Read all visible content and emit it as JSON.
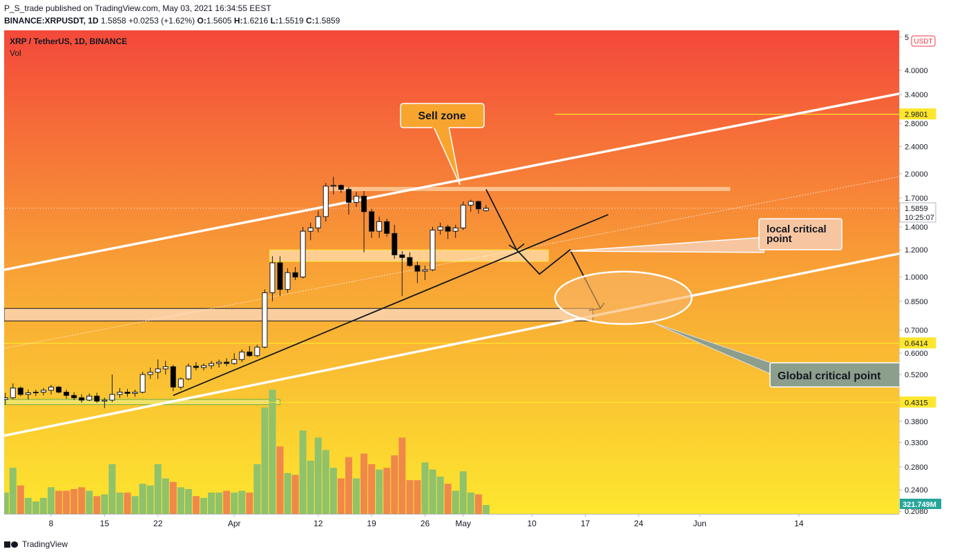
{
  "header": {
    "publisher_line": "P_S_trade published on TradingView.com, May 03, 2021 16:34:55 EEST",
    "symbol": "BINANCE:XRPUSDT, 1D",
    "last": "1.5858",
    "change": "+0.0253 (+1.62%)",
    "o_label": "O:",
    "o_value": "1.5605",
    "h_label": "H:",
    "h_value": "1.6216",
    "l_label": "L:",
    "l_value": "1.5519",
    "c_label": "C:",
    "c_value": "1.5859"
  },
  "legend": {
    "title": "XRP / TetherUS, 1D, BINANCE",
    "vol": "Vol"
  },
  "footer": {
    "brand": "TradingView"
  },
  "colors": {
    "up": "#ffffff",
    "down": "#000000",
    "vol_up": "#8fc26b",
    "vol_down": "#f0884a",
    "gradient_top": "#f4483a",
    "gradient_bottom": "#fde72e"
  },
  "chart_data": {
    "type": "candlestick",
    "scale": "log",
    "currency": "USDT",
    "y_ticks": [
      5,
      4.0,
      3.4,
      2.8,
      2.4,
      2.0,
      1.7,
      1.4,
      1.2,
      1.0,
      0.85,
      0.7,
      0.6,
      0.52,
      0.38,
      0.33,
      0.28,
      0.24,
      0.208
    ],
    "y_tick_labels": [
      "5",
      "4.0000",
      "3.4000",
      "2.8000",
      "2.4000",
      "2.0000",
      "1.7000",
      "1.4000",
      "1.2000",
      "1.0000",
      "0.8500",
      "0.7000",
      "0.6000",
      "0.5200",
      "0.3800",
      "0.3300",
      "0.2800",
      "0.2400",
      "0.2080"
    ],
    "x_labels": [
      {
        "label": "8",
        "date": "2021-03-08"
      },
      {
        "label": "15",
        "date": "2021-03-15"
      },
      {
        "label": "22",
        "date": "2021-03-22"
      },
      {
        "label": "Apr",
        "date": "2021-04-01"
      },
      {
        "label": "12",
        "date": "2021-04-12"
      },
      {
        "label": "19",
        "date": "2021-04-19"
      },
      {
        "label": "26",
        "date": "2021-04-26"
      },
      {
        "label": "May",
        "date": "2021-05-01"
      },
      {
        "label": "10",
        "date": "2021-05-10"
      },
      {
        "label": "17",
        "date": "2021-05-17"
      },
      {
        "label": "24",
        "date": "2021-05-24"
      },
      {
        "label": "Jun",
        "date": "2021-06-01"
      },
      {
        "label": "14",
        "date": "2021-06-14"
      }
    ],
    "candles": [
      {
        "date": "2021-03-02",
        "o": 0.44,
        "h": 0.46,
        "l": 0.425,
        "c": 0.445,
        "v": 0.12
      },
      {
        "date": "2021-03-03",
        "o": 0.445,
        "h": 0.49,
        "l": 0.44,
        "c": 0.475,
        "v": 0.26
      },
      {
        "date": "2021-03-04",
        "o": 0.475,
        "h": 0.48,
        "l": 0.45,
        "c": 0.455,
        "v": 0.16
      },
      {
        "date": "2021-03-05",
        "o": 0.455,
        "h": 0.47,
        "l": 0.44,
        "c": 0.46,
        "v": 0.09
      },
      {
        "date": "2021-03-06",
        "o": 0.46,
        "h": 0.47,
        "l": 0.45,
        "c": 0.462,
        "v": 0.07
      },
      {
        "date": "2021-03-07",
        "o": 0.462,
        "h": 0.475,
        "l": 0.452,
        "c": 0.468,
        "v": 0.09
      },
      {
        "date": "2021-03-08",
        "o": 0.468,
        "h": 0.485,
        "l": 0.455,
        "c": 0.478,
        "v": 0.15
      },
      {
        "date": "2021-03-09",
        "o": 0.478,
        "h": 0.482,
        "l": 0.458,
        "c": 0.462,
        "v": 0.13
      },
      {
        "date": "2021-03-10",
        "o": 0.462,
        "h": 0.47,
        "l": 0.442,
        "c": 0.452,
        "v": 0.13
      },
      {
        "date": "2021-03-11",
        "o": 0.452,
        "h": 0.462,
        "l": 0.438,
        "c": 0.445,
        "v": 0.14
      },
      {
        "date": "2021-03-12",
        "o": 0.445,
        "h": 0.455,
        "l": 0.43,
        "c": 0.438,
        "v": 0.15
      },
      {
        "date": "2021-03-13",
        "o": 0.438,
        "h": 0.458,
        "l": 0.435,
        "c": 0.45,
        "v": 0.13
      },
      {
        "date": "2021-03-14",
        "o": 0.45,
        "h": 0.46,
        "l": 0.43,
        "c": 0.435,
        "v": 0.1
      },
      {
        "date": "2021-03-15",
        "o": 0.435,
        "h": 0.445,
        "l": 0.415,
        "c": 0.438,
        "v": 0.11
      },
      {
        "date": "2021-03-16",
        "o": 0.438,
        "h": 0.52,
        "l": 0.432,
        "c": 0.455,
        "v": 0.28
      },
      {
        "date": "2021-03-17",
        "o": 0.455,
        "h": 0.475,
        "l": 0.445,
        "c": 0.462,
        "v": 0.12
      },
      {
        "date": "2021-03-18",
        "o": 0.462,
        "h": 0.472,
        "l": 0.448,
        "c": 0.458,
        "v": 0.12
      },
      {
        "date": "2021-03-19",
        "o": 0.458,
        "h": 0.47,
        "l": 0.448,
        "c": 0.462,
        "v": 0.1
      },
      {
        "date": "2021-03-20",
        "o": 0.462,
        "h": 0.53,
        "l": 0.458,
        "c": 0.52,
        "v": 0.17
      },
      {
        "date": "2021-03-21",
        "o": 0.52,
        "h": 0.545,
        "l": 0.505,
        "c": 0.528,
        "v": 0.16
      },
      {
        "date": "2021-03-22",
        "o": 0.528,
        "h": 0.575,
        "l": 0.505,
        "c": 0.54,
        "v": 0.28
      },
      {
        "date": "2021-03-23",
        "o": 0.54,
        "h": 0.57,
        "l": 0.52,
        "c": 0.548,
        "v": 0.2
      },
      {
        "date": "2021-03-24",
        "o": 0.548,
        "h": 0.555,
        "l": 0.465,
        "c": 0.478,
        "v": 0.18
      },
      {
        "date": "2021-03-25",
        "o": 0.478,
        "h": 0.51,
        "l": 0.47,
        "c": 0.505,
        "v": 0.15
      },
      {
        "date": "2021-03-26",
        "o": 0.505,
        "h": 0.56,
        "l": 0.5,
        "c": 0.55,
        "v": 0.14
      },
      {
        "date": "2021-03-27",
        "o": 0.55,
        "h": 0.565,
        "l": 0.535,
        "c": 0.545,
        "v": 0.1
      },
      {
        "date": "2021-03-28",
        "o": 0.545,
        "h": 0.56,
        "l": 0.535,
        "c": 0.552,
        "v": 0.09
      },
      {
        "date": "2021-03-29",
        "o": 0.552,
        "h": 0.57,
        "l": 0.54,
        "c": 0.56,
        "v": 0.12
      },
      {
        "date": "2021-03-30",
        "o": 0.56,
        "h": 0.575,
        "l": 0.545,
        "c": 0.565,
        "v": 0.12
      },
      {
        "date": "2021-03-31",
        "o": 0.565,
        "h": 0.58,
        "l": 0.55,
        "c": 0.56,
        "v": 0.13
      },
      {
        "date": "2021-04-01",
        "o": 0.56,
        "h": 0.6,
        "l": 0.555,
        "c": 0.575,
        "v": 0.12
      },
      {
        "date": "2021-04-02",
        "o": 0.575,
        "h": 0.615,
        "l": 0.565,
        "c": 0.605,
        "v": 0.13
      },
      {
        "date": "2021-04-03",
        "o": 0.605,
        "h": 0.63,
        "l": 0.585,
        "c": 0.59,
        "v": 0.12
      },
      {
        "date": "2021-04-04",
        "o": 0.59,
        "h": 0.635,
        "l": 0.585,
        "c": 0.625,
        "v": 0.28
      },
      {
        "date": "2021-04-05",
        "o": 0.625,
        "h": 0.92,
        "l": 0.62,
        "c": 0.9,
        "v": 0.6
      },
      {
        "date": "2021-04-06",
        "o": 0.9,
        "h": 1.15,
        "l": 0.85,
        "c": 1.1,
        "v": 0.7
      },
      {
        "date": "2021-04-07",
        "o": 1.1,
        "h": 1.15,
        "l": 0.88,
        "c": 0.92,
        "v": 0.38
      },
      {
        "date": "2021-04-08",
        "o": 0.92,
        "h": 1.06,
        "l": 0.9,
        "c": 1.03,
        "v": 0.23
      },
      {
        "date": "2021-04-09",
        "o": 1.03,
        "h": 1.07,
        "l": 0.98,
        "c": 1.0,
        "v": 0.22
      },
      {
        "date": "2021-04-10",
        "o": 1.0,
        "h": 1.4,
        "l": 0.99,
        "c": 1.36,
        "v": 0.47
      },
      {
        "date": "2021-04-11",
        "o": 1.36,
        "h": 1.44,
        "l": 1.28,
        "c": 1.39,
        "v": 0.3
      },
      {
        "date": "2021-04-12",
        "o": 1.39,
        "h": 1.56,
        "l": 1.35,
        "c": 1.5,
        "v": 0.43
      },
      {
        "date": "2021-04-13",
        "o": 1.5,
        "h": 1.88,
        "l": 1.45,
        "c": 1.84,
        "v": 0.36
      },
      {
        "date": "2021-04-14",
        "o": 1.84,
        "h": 1.96,
        "l": 1.74,
        "c": 1.85,
        "v": 0.26
      },
      {
        "date": "2021-04-15",
        "o": 1.85,
        "h": 1.86,
        "l": 1.76,
        "c": 1.8,
        "v": 0.2
      },
      {
        "date": "2021-04-16",
        "o": 1.8,
        "h": 1.83,
        "l": 1.52,
        "c": 1.65,
        "v": 0.32
      },
      {
        "date": "2021-04-17",
        "o": 1.65,
        "h": 1.77,
        "l": 1.6,
        "c": 1.72,
        "v": 0.2
      },
      {
        "date": "2021-04-18",
        "o": 1.72,
        "h": 1.78,
        "l": 1.18,
        "c": 1.55,
        "v": 0.34
      },
      {
        "date": "2021-04-19",
        "o": 1.55,
        "h": 1.58,
        "l": 1.3,
        "c": 1.36,
        "v": 0.28
      },
      {
        "date": "2021-04-20",
        "o": 1.36,
        "h": 1.5,
        "l": 1.3,
        "c": 1.45,
        "v": 0.25
      },
      {
        "date": "2021-04-21",
        "o": 1.45,
        "h": 1.48,
        "l": 1.31,
        "c": 1.34,
        "v": 0.26
      },
      {
        "date": "2021-04-22",
        "o": 1.34,
        "h": 1.42,
        "l": 1.13,
        "c": 1.16,
        "v": 0.33
      },
      {
        "date": "2021-04-23",
        "o": 1.16,
        "h": 1.19,
        "l": 0.88,
        "c": 1.14,
        "v": 0.43
      },
      {
        "date": "2021-04-24",
        "o": 1.14,
        "h": 1.18,
        "l": 1.07,
        "c": 1.08,
        "v": 0.19
      },
      {
        "date": "2021-04-25",
        "o": 1.08,
        "h": 1.11,
        "l": 0.96,
        "c": 1.04,
        "v": 0.19
      },
      {
        "date": "2021-04-26",
        "o": 1.04,
        "h": 1.08,
        "l": 0.98,
        "c": 1.05,
        "v": 0.29
      },
      {
        "date": "2021-04-27",
        "o": 1.05,
        "h": 1.4,
        "l": 1.04,
        "c": 1.37,
        "v": 0.25
      },
      {
        "date": "2021-04-28",
        "o": 1.37,
        "h": 1.44,
        "l": 1.33,
        "c": 1.4,
        "v": 0.21
      },
      {
        "date": "2021-04-29",
        "o": 1.4,
        "h": 1.42,
        "l": 1.29,
        "c": 1.36,
        "v": 0.17
      },
      {
        "date": "2021-04-30",
        "o": 1.36,
        "h": 1.42,
        "l": 1.3,
        "c": 1.39,
        "v": 0.13
      },
      {
        "date": "2021-05-01",
        "o": 1.39,
        "h": 1.66,
        "l": 1.37,
        "c": 1.62,
        "v": 0.24
      },
      {
        "date": "2021-05-02",
        "o": 1.62,
        "h": 1.68,
        "l": 1.55,
        "c": 1.66,
        "v": 0.12
      },
      {
        "date": "2021-05-03",
        "o": 1.66,
        "h": 1.67,
        "l": 1.53,
        "c": 1.58,
        "v": 0.11
      },
      {
        "date": "2021-05-04",
        "o": 1.5605,
        "h": 1.6216,
        "l": 1.5519,
        "c": 1.5859,
        "v": 0.05
      }
    ],
    "price_labels": [
      {
        "value": 2.9801,
        "text": "2.9801",
        "color": "#fde72e"
      },
      {
        "value": 1.5859,
        "text": "1.5859",
        "sub": "10:25:07",
        "color": "#ffffff"
      },
      {
        "value": 0.6414,
        "text": "0.6414",
        "color": "#fde72e"
      },
      {
        "value": 0.4315,
        "text": "0.4315",
        "color": "#fde72e"
      }
    ],
    "volume_label": "321.749M",
    "annotations": {
      "sell_zone": "Sell zone",
      "local_critical": "local critical point",
      "global_critical": "Global critical point"
    }
  }
}
